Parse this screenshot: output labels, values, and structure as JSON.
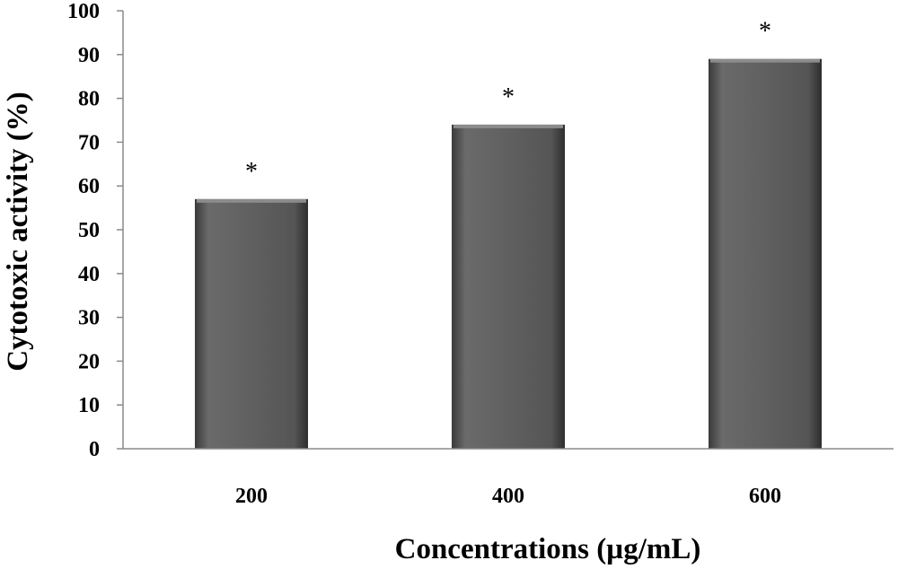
{
  "chart_data": {
    "type": "bar",
    "categories": [
      "200",
      "400",
      "600"
    ],
    "values": [
      57,
      74,
      89
    ],
    "annotations": [
      "*",
      "*",
      "*"
    ],
    "xlabel": "Concentrations (µg/mL)",
    "ylabel": "Cytotoxic activity (%)",
    "ylim": [
      0,
      100
    ],
    "yticks": [
      0,
      10,
      20,
      30,
      40,
      50,
      60,
      70,
      80,
      90,
      100
    ],
    "grid": false,
    "legend": "none",
    "bar_color": "#5f5f5f"
  }
}
